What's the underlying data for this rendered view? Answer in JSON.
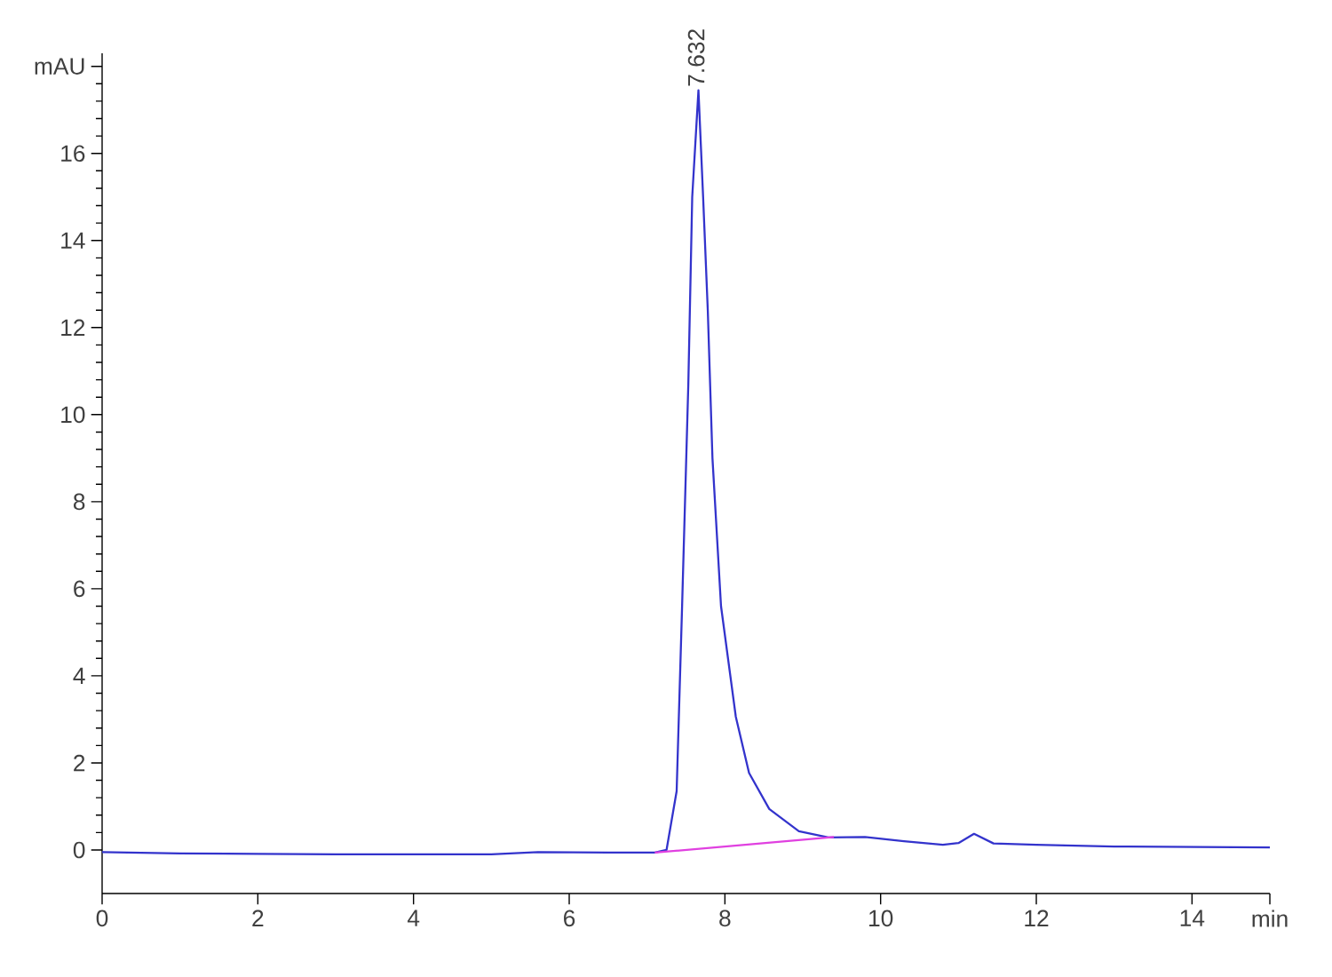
{
  "chart_data": {
    "type": "line",
    "series": [
      {
        "color": "#3333cc",
        "x": [
          0,
          1,
          2,
          3,
          4,
          5,
          5.6,
          6.5,
          7.1,
          7.25,
          7.38,
          7.45,
          7.53,
          7.58,
          7.66,
          7.72,
          7.78,
          7.84,
          7.95,
          8.14,
          8.31,
          8.57,
          8.95,
          9.33,
          9.8,
          10.3,
          10.8,
          11.0,
          11.2,
          11.45,
          12,
          13,
          15
        ],
        "values": [
          -0.05,
          -0.08,
          -0.09,
          -0.1,
          -0.1,
          -0.1,
          -0.05,
          -0.06,
          -0.06,
          0.0,
          1.35,
          5.6,
          10.7,
          15.0,
          17.45,
          15.0,
          12.4,
          9.0,
          5.6,
          3.06,
          1.77,
          0.94,
          0.43,
          0.29,
          0.3,
          0.2,
          0.12,
          0.16,
          0.37,
          0.15,
          0.12,
          0.08,
          0.06
        ]
      },
      {
        "color": "#e040e0",
        "x": [
          7.1,
          9.4
        ],
        "values": [
          -0.06,
          0.3
        ]
      }
    ],
    "xlim": [
      0,
      15
    ],
    "ylim": [
      -1,
      18.3
    ],
    "xticks": [
      0,
      2,
      4,
      6,
      8,
      10,
      12,
      14,
      {
        "value": 15,
        "label": "min"
      }
    ],
    "yticks": [
      0,
      2,
      4,
      6,
      8,
      10,
      12,
      14,
      16,
      {
        "value": 18,
        "label": "mAU"
      }
    ],
    "annotations": [
      {
        "text": "7.632",
        "x": 7.632,
        "y": 17.45
      }
    ],
    "grid": false
  }
}
